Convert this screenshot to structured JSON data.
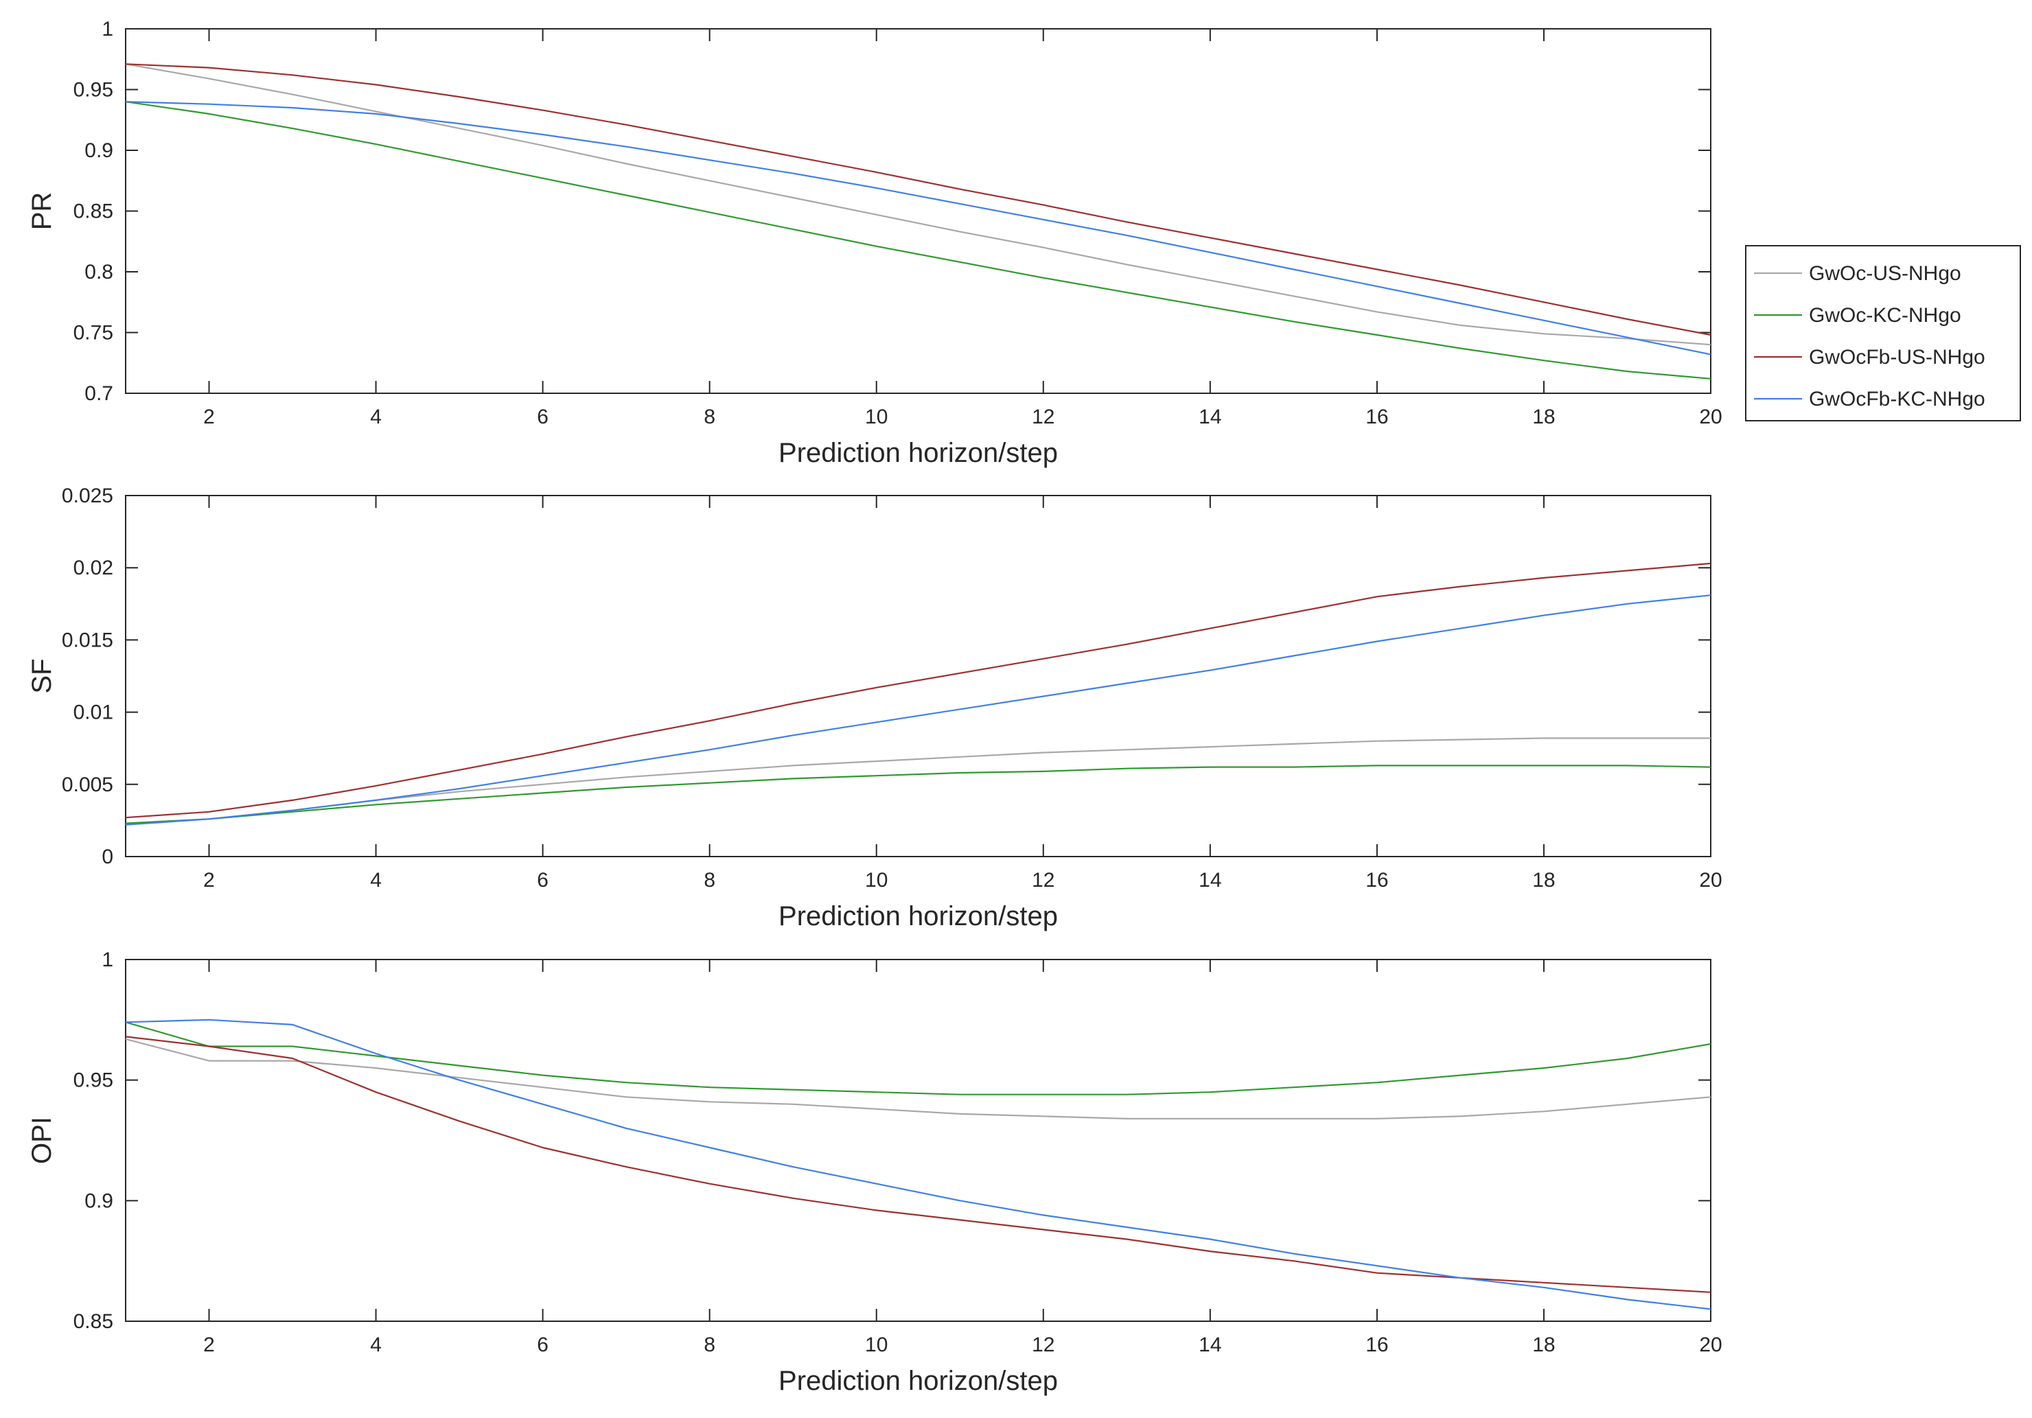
{
  "legend": {
    "location": "right",
    "entries": [
      {
        "name": "GwOc-US-NHgo",
        "color": "#a8a8a8"
      },
      {
        "name": "GwOc-KC-NHgo",
        "color": "#2e9a2e"
      },
      {
        "name": "GwOcFb-US-NHgo",
        "color": "#9e2f2f"
      },
      {
        "name": "GwOcFb-KC-NHgo",
        "color": "#3f7fe8"
      }
    ]
  },
  "chart_data": [
    {
      "type": "line",
      "title": "",
      "xlabel": "Prediction horizon/step",
      "ylabel": "PR",
      "xlim": [
        1,
        20
      ],
      "ylim": [
        0.7,
        1
      ],
      "xticks": [
        "2",
        "4",
        "6",
        "8",
        "10",
        "12",
        "14",
        "16",
        "18",
        "20"
      ],
      "yticks": [
        "0.7",
        "0.75",
        "0.8",
        "0.85",
        "0.9",
        "0.95",
        "1"
      ],
      "x": [
        1,
        2,
        3,
        4,
        5,
        6,
        7,
        8,
        9,
        10,
        11,
        12,
        13,
        14,
        15,
        16,
        17,
        18,
        19,
        20
      ],
      "series": [
        {
          "name": "GwOc-US-NHgo",
          "values": [
            0.971,
            0.959,
            0.946,
            0.932,
            0.918,
            0.904,
            0.889,
            0.875,
            0.861,
            0.847,
            0.833,
            0.82,
            0.806,
            0.793,
            0.78,
            0.767,
            0.756,
            0.749,
            0.745,
            0.74
          ]
        },
        {
          "name": "GwOc-KC-NHgo",
          "values": [
            0.94,
            0.93,
            0.918,
            0.905,
            0.891,
            0.877,
            0.863,
            0.849,
            0.835,
            0.821,
            0.808,
            0.795,
            0.783,
            0.771,
            0.759,
            0.748,
            0.737,
            0.727,
            0.718,
            0.712
          ]
        },
        {
          "name": "GwOcFb-US-NHgo",
          "values": [
            0.971,
            0.968,
            0.962,
            0.954,
            0.944,
            0.933,
            0.921,
            0.908,
            0.895,
            0.882,
            0.868,
            0.855,
            0.841,
            0.828,
            0.815,
            0.802,
            0.789,
            0.775,
            0.761,
            0.748
          ]
        },
        {
          "name": "GwOcFb-KC-NHgo",
          "values": [
            0.94,
            0.938,
            0.935,
            0.93,
            0.922,
            0.913,
            0.903,
            0.892,
            0.881,
            0.869,
            0.856,
            0.843,
            0.83,
            0.816,
            0.802,
            0.788,
            0.774,
            0.76,
            0.746,
            0.732
          ]
        }
      ]
    },
    {
      "type": "line",
      "title": "",
      "xlabel": "Prediction horizon/step",
      "ylabel": "SF",
      "xlim": [
        1,
        20
      ],
      "ylim": [
        0,
        0.025
      ],
      "xticks": [
        "2",
        "4",
        "6",
        "8",
        "10",
        "12",
        "14",
        "16",
        "18",
        "20"
      ],
      "yticks": [
        "0",
        "0.005",
        "0.01",
        "0.015",
        "0.02",
        "0.025"
      ],
      "x": [
        1,
        2,
        3,
        4,
        5,
        6,
        7,
        8,
        9,
        10,
        11,
        12,
        13,
        14,
        15,
        16,
        17,
        18,
        19,
        20
      ],
      "series": [
        {
          "name": "GwOc-US-NHgo",
          "values": [
            0.0023,
            0.0026,
            0.0032,
            0.0039,
            0.0045,
            0.005,
            0.0055,
            0.0059,
            0.0063,
            0.0066,
            0.0069,
            0.0072,
            0.0074,
            0.0076,
            0.0078,
            0.008,
            0.0081,
            0.0082,
            0.0082,
            0.0082
          ]
        },
        {
          "name": "GwOc-KC-NHgo",
          "values": [
            0.0023,
            0.0026,
            0.0031,
            0.0036,
            0.004,
            0.0044,
            0.0048,
            0.0051,
            0.0054,
            0.0056,
            0.0058,
            0.0059,
            0.0061,
            0.0062,
            0.0062,
            0.0063,
            0.0063,
            0.0063,
            0.0063,
            0.0062
          ]
        },
        {
          "name": "GwOcFb-US-NHgo",
          "values": [
            0.0027,
            0.0031,
            0.0039,
            0.0049,
            0.006,
            0.0071,
            0.0083,
            0.0094,
            0.0106,
            0.0117,
            0.0127,
            0.0137,
            0.0147,
            0.0158,
            0.0169,
            0.018,
            0.0187,
            0.0193,
            0.0198,
            0.0203
          ]
        },
        {
          "name": "GwOcFb-KC-NHgo",
          "values": [
            0.0022,
            0.0026,
            0.0032,
            0.0039,
            0.0047,
            0.0056,
            0.0065,
            0.0074,
            0.0084,
            0.0093,
            0.0102,
            0.0111,
            0.012,
            0.0129,
            0.0139,
            0.0149,
            0.0158,
            0.0167,
            0.0175,
            0.0181
          ]
        }
      ]
    },
    {
      "type": "line",
      "title": "",
      "xlabel": "Prediction horizon/step",
      "ylabel": "OPI",
      "xlim": [
        1,
        20
      ],
      "ylim": [
        0.85,
        1
      ],
      "xticks": [
        "2",
        "4",
        "6",
        "8",
        "10",
        "12",
        "14",
        "16",
        "18",
        "20"
      ],
      "yticks": [
        "0.85",
        "0.9",
        "0.95",
        "1"
      ],
      "x": [
        1,
        2,
        3,
        4,
        5,
        6,
        7,
        8,
        9,
        10,
        11,
        12,
        13,
        14,
        15,
        16,
        17,
        18,
        19,
        20
      ],
      "series": [
        {
          "name": "GwOc-US-NHgo",
          "values": [
            0.967,
            0.958,
            0.958,
            0.955,
            0.951,
            0.947,
            0.943,
            0.941,
            0.94,
            0.938,
            0.936,
            0.935,
            0.934,
            0.934,
            0.934,
            0.934,
            0.935,
            0.937,
            0.94,
            0.943
          ]
        },
        {
          "name": "GwOc-KC-NHgo",
          "values": [
            0.974,
            0.964,
            0.964,
            0.96,
            0.956,
            0.952,
            0.949,
            0.947,
            0.946,
            0.945,
            0.944,
            0.944,
            0.944,
            0.945,
            0.947,
            0.949,
            0.952,
            0.955,
            0.959,
            0.965
          ]
        },
        {
          "name": "GwOcFb-US-NHgo",
          "values": [
            0.968,
            0.964,
            0.959,
            0.945,
            0.933,
            0.922,
            0.914,
            0.907,
            0.901,
            0.896,
            0.892,
            0.888,
            0.884,
            0.879,
            0.875,
            0.87,
            0.868,
            0.866,
            0.864,
            0.862
          ]
        },
        {
          "name": "GwOcFb-KC-NHgo",
          "values": [
            0.974,
            0.975,
            0.973,
            0.961,
            0.95,
            0.94,
            0.93,
            0.922,
            0.914,
            0.907,
            0.9,
            0.894,
            0.889,
            0.884,
            0.878,
            0.873,
            0.868,
            0.864,
            0.859,
            0.855
          ]
        }
      ]
    }
  ]
}
